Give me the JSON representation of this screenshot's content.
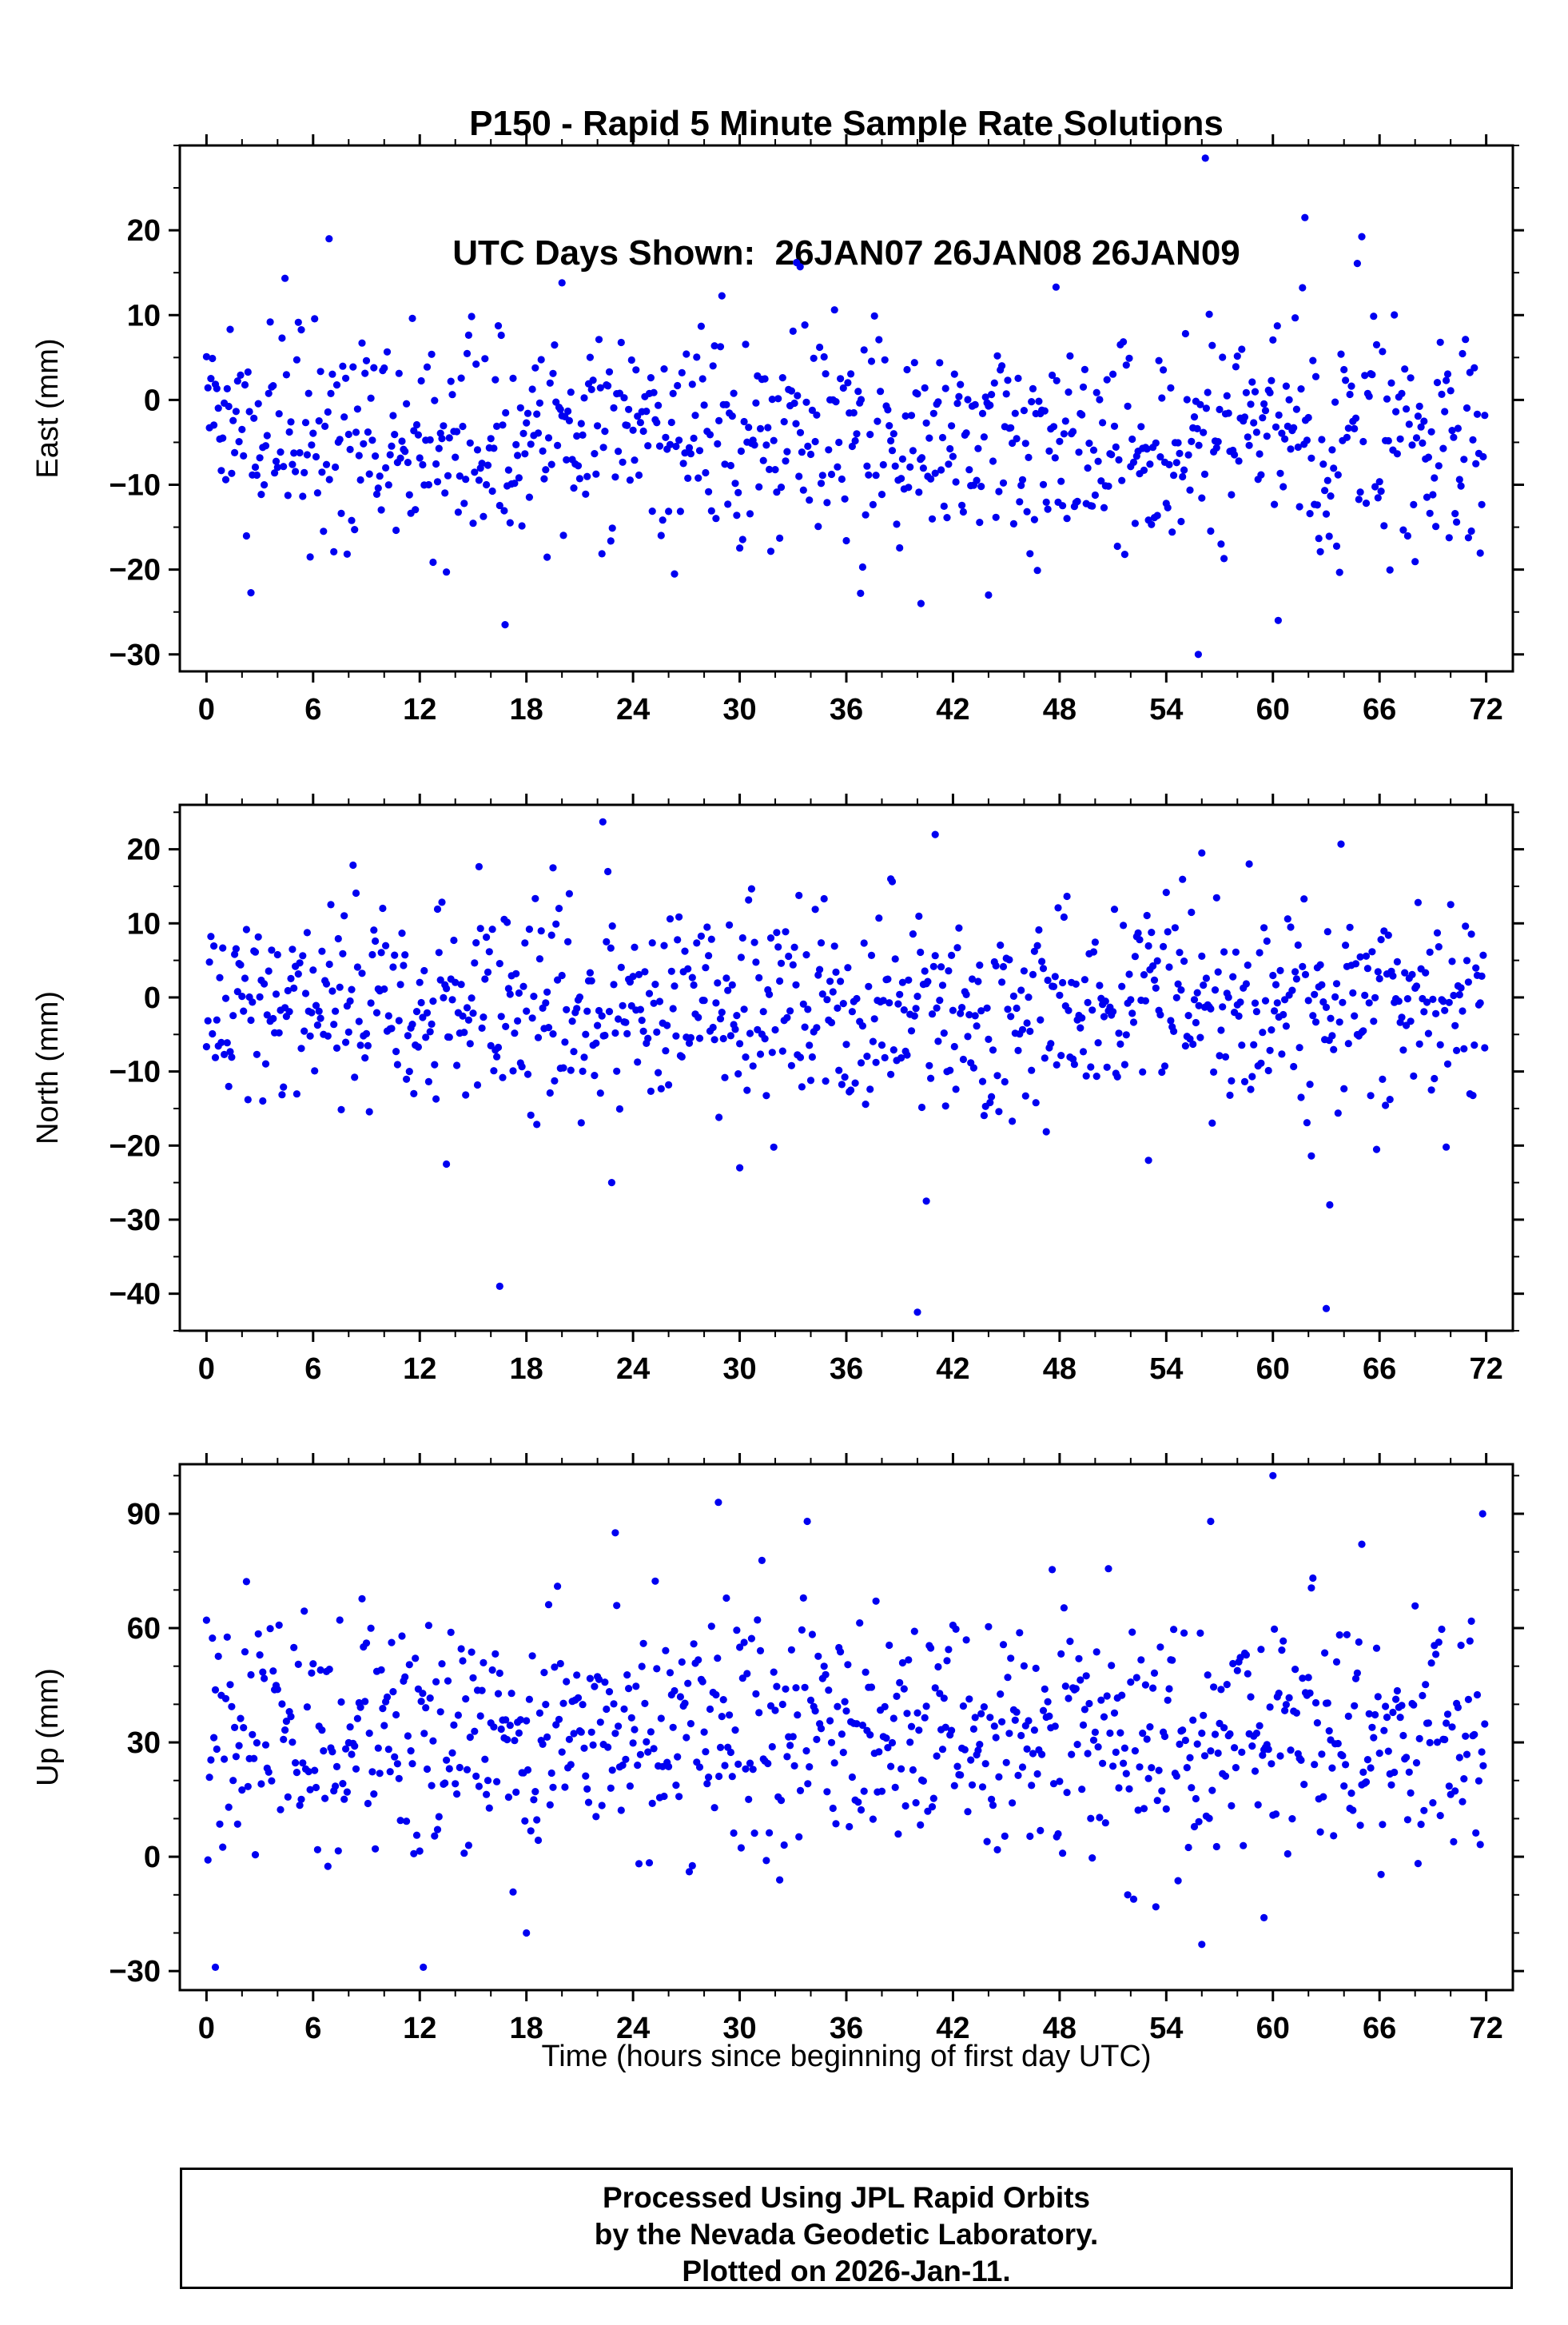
{
  "title": {
    "line1": "P150 - Rapid 5 Minute Sample Rate Solutions",
    "line2": "UTC Days Shown:  26JAN07 26JAN08 26JAN09"
  },
  "caption": {
    "line1": "Processed Using JPL Rapid Orbits",
    "line2": "by the Nevada Geodetic Laboratory.",
    "line3": "Plotted on 2026-Jan-11."
  },
  "style": {
    "point_color": "#0000f0",
    "frame_color": "#000000",
    "point_radius": 4.6
  },
  "chart_data": {
    "type": "scatter",
    "station": "P150",
    "sample_interval_minutes": 5,
    "duration_hours": 72,
    "utc_days_shown": [
      "26JAN07",
      "26JAN08",
      "26JAN09"
    ],
    "x_axis": {
      "label": "Time (hours since beginning of first day UTC)",
      "xlim": [
        -1.5,
        73.5
      ],
      "ticks": [
        0,
        6,
        12,
        18,
        24,
        30,
        36,
        42,
        48,
        54,
        60,
        66,
        72
      ],
      "minor_step": 2
    },
    "grid": false,
    "legend": false,
    "panels": [
      {
        "name": "east",
        "ylabel": "East (mm)",
        "ylim": [
          -32,
          30
        ],
        "yticks": [
          20,
          10,
          0,
          -10,
          -20,
          -30
        ],
        "minor_step": 5,
        "n": 864,
        "mean": -4.5,
        "std": 6.8,
        "seed": 42,
        "outliers": [
          [
            56.2,
            28.5
          ],
          [
            61.8,
            21.5
          ],
          [
            6.9,
            19.0
          ],
          [
            33.2,
            16.2
          ],
          [
            33.4,
            15.7
          ],
          [
            20.0,
            13.8
          ],
          [
            47.8,
            13.3
          ],
          [
            55.8,
            -30.0
          ],
          [
            16.8,
            -26.5
          ],
          [
            60.3,
            -26.0
          ],
          [
            40.2,
            -24.0
          ],
          [
            36.8,
            -22.8
          ],
          [
            44.0,
            -23.0
          ]
        ]
      },
      {
        "name": "north",
        "ylabel": "North (mm)",
        "ylim": [
          -45,
          26
        ],
        "yticks": [
          20,
          10,
          0,
          -10,
          -20,
          -30,
          -40
        ],
        "minor_step": 5,
        "n": 864,
        "mean": -1.5,
        "std": 7.2,
        "seed": 1337,
        "outliers": [
          [
            22.3,
            23.7
          ],
          [
            41.0,
            22.0
          ],
          [
            56.0,
            19.5
          ],
          [
            19.5,
            17.5
          ],
          [
            38.5,
            16.0
          ],
          [
            40.0,
            -42.5
          ],
          [
            63.0,
            -42.0
          ],
          [
            16.5,
            -39.0
          ],
          [
            63.2,
            -28.0
          ],
          [
            40.5,
            -27.5
          ],
          [
            22.8,
            -25.0
          ],
          [
            30.0,
            -23.0
          ],
          [
            13.5,
            -22.5
          ],
          [
            53.0,
            -22.0
          ]
        ]
      },
      {
        "name": "up",
        "ylabel": "Up (mm)",
        "ylim": [
          -35,
          103
        ],
        "yticks": [
          90,
          60,
          30,
          0,
          -30
        ],
        "minor_step": 10,
        "n": 864,
        "mean": 33,
        "std": 16,
        "seed": 2024,
        "outliers": [
          [
            60.0,
            100.0
          ],
          [
            28.8,
            93.0
          ],
          [
            71.8,
            90.0
          ],
          [
            33.8,
            88.0
          ],
          [
            56.5,
            88.0
          ],
          [
            23.0,
            85.0
          ],
          [
            65.0,
            82.0
          ],
          [
            0.5,
            -29.0
          ],
          [
            12.2,
            -29.0
          ],
          [
            18.0,
            -20.0
          ],
          [
            56.0,
            -23.0
          ],
          [
            59.5,
            -16.0
          ]
        ]
      }
    ]
  }
}
